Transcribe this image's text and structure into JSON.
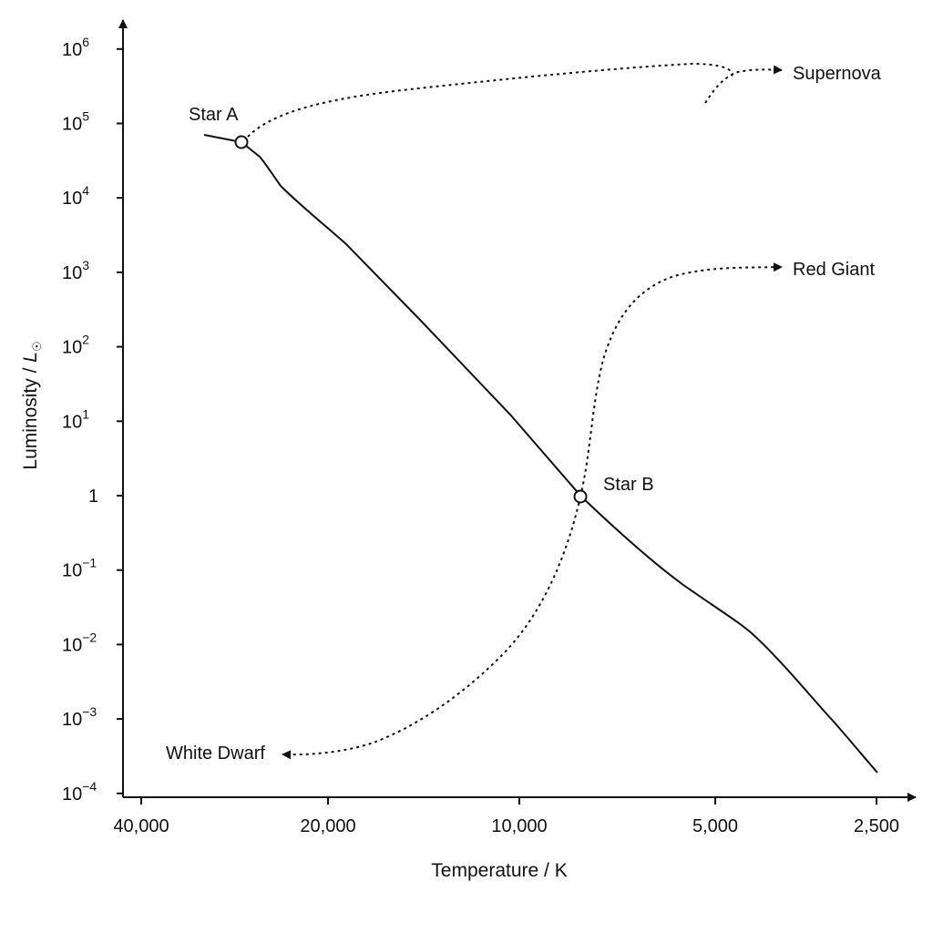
{
  "diagram": {
    "x_axis": {
      "title": "Temperature / K",
      "ticks": [
        {
          "value": 40000,
          "label": "40,000"
        },
        {
          "value": 20000,
          "label": "20,000"
        },
        {
          "value": 10000,
          "label": "10,000"
        },
        {
          "value": 5000,
          "label": "5,000"
        },
        {
          "value": 2500,
          "label": "2,500"
        }
      ],
      "direction": "decreasing-to-right",
      "scale": "log"
    },
    "y_axis": {
      "title_main": "Luminosity / ",
      "title_symbol": "L",
      "title_subscript": "☉",
      "scale": "log",
      "ticks": [
        {
          "exp": 6,
          "base": "10",
          "sup": "6"
        },
        {
          "exp": 5,
          "base": "10",
          "sup": "5"
        },
        {
          "exp": 4,
          "base": "10",
          "sup": "4"
        },
        {
          "exp": 3,
          "base": "10",
          "sup": "3"
        },
        {
          "exp": 2,
          "base": "10",
          "sup": "2"
        },
        {
          "exp": 1,
          "base": "10",
          "sup": "1"
        },
        {
          "exp": 0,
          "base": "1",
          "sup": ""
        },
        {
          "exp": -1,
          "base": "10",
          "sup": "−1"
        },
        {
          "exp": -2,
          "base": "10",
          "sup": "−2"
        },
        {
          "exp": -3,
          "base": "10",
          "sup": "−3"
        },
        {
          "exp": -4,
          "base": "10",
          "sup": "−4"
        }
      ]
    },
    "stars": [
      {
        "id": "star-a",
        "label": "Star A",
        "temperature": 26000,
        "luminosity_exp": 4.85
      },
      {
        "id": "star-b",
        "label": "Star B",
        "temperature": 7500,
        "luminosity_exp": 0
      }
    ],
    "paths": [
      {
        "id": "supernova",
        "label": "Supernova",
        "style": "dotted-arrow"
      },
      {
        "id": "red-giant",
        "label": "Red Giant",
        "style": "dotted-arrow"
      },
      {
        "id": "white-dwarf",
        "label": "White Dwarf",
        "style": "dotted-arrow"
      }
    ],
    "main_sequence": {
      "style": "solid-line"
    },
    "colors": {
      "line": "#111111",
      "background": "#ffffff"
    }
  }
}
